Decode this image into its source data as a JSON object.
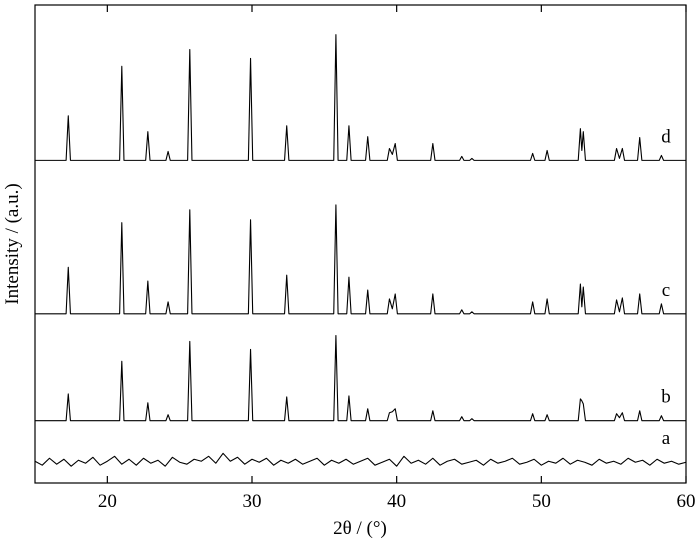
{
  "chart_data": {
    "type": "line",
    "xlabel": "2θ / (°)",
    "ylabel": "Intensity / (a.u.)",
    "xlim": [
      15,
      60
    ],
    "xticks": [
      20,
      30,
      40,
      50,
      60
    ],
    "ylim": [
      0,
      483
    ],
    "x": [
      15,
      17.15,
      17.3,
      17.45,
      20.85,
      21.0,
      21.15,
      22.65,
      22.8,
      22.95,
      24.05,
      24.2,
      24.35,
      25.55,
      25.7,
      25.85,
      29.75,
      29.9,
      30.05,
      32.25,
      32.4,
      32.55,
      35.65,
      35.8,
      35.95,
      36.55,
      36.7,
      36.85,
      37.85,
      38.0,
      38.15,
      39.35,
      39.5,
      39.7,
      39.9,
      40.05,
      42.35,
      42.5,
      42.65,
      44.35,
      44.5,
      44.65,
      45.05,
      45.2,
      45.35,
      49.25,
      49.4,
      49.55,
      50.25,
      50.4,
      50.55,
      52.55,
      52.7,
      52.8,
      52.9,
      53.05,
      55.05,
      55.2,
      55.4,
      55.6,
      55.75,
      56.65,
      56.8,
      56.95,
      58.15,
      58.3,
      58.45,
      60
    ],
    "series": [
      {
        "name": "a",
        "color": "#000000",
        "x": [
          15,
          15.5,
          16,
          16.5,
          17,
          17.5,
          18,
          18.5,
          19,
          19.5,
          20,
          20.5,
          21,
          21.5,
          22,
          22.5,
          23,
          23.5,
          24,
          24.5,
          25,
          25.5,
          26,
          26.5,
          27,
          27.5,
          28,
          28.5,
          29,
          29.5,
          30,
          30.5,
          31,
          31.5,
          32,
          32.5,
          33,
          33.5,
          34,
          34.5,
          35,
          35.5,
          36,
          36.5,
          37,
          37.5,
          38,
          38.5,
          39,
          39.5,
          40,
          40.5,
          41,
          41.5,
          42,
          42.5,
          43,
          43.5,
          44,
          44.5,
          45,
          45.5,
          46,
          46.5,
          47,
          47.5,
          48,
          48.5,
          49,
          49.5,
          50,
          50.5,
          51,
          51.5,
          52,
          52.5,
          53,
          53.5,
          54,
          54.5,
          55,
          55.5,
          56,
          56.5,
          57,
          57.5,
          58,
          58.5,
          59,
          59.5,
          60
        ],
        "values": [
          22,
          18,
          25,
          19,
          24,
          17,
          23,
          20,
          26,
          18,
          22,
          27,
          19,
          24,
          18,
          25,
          20,
          23,
          17,
          26,
          21,
          19,
          24,
          22,
          27,
          20,
          30,
          22,
          26,
          19,
          24,
          21,
          25,
          18,
          23,
          20,
          24,
          19,
          22,
          25,
          18,
          23,
          20,
          24,
          19,
          22,
          25,
          18,
          21,
          24,
          17,
          27,
          20,
          23,
          19,
          25,
          18,
          22,
          24,
          19,
          21,
          23,
          18,
          24,
          20,
          22,
          25,
          19,
          21,
          24,
          18,
          22,
          20,
          25,
          19,
          23,
          21,
          18,
          24,
          20,
          22,
          19,
          25,
          21,
          23,
          18,
          24,
          20,
          22,
          19,
          21
        ]
      },
      {
        "name": "b",
        "color": "#000000",
        "values": [
          63,
          63,
          90,
          63,
          63,
          123,
          63,
          63,
          81,
          63,
          63,
          69,
          63,
          63,
          143,
          63,
          63,
          135,
          63,
          63,
          87,
          63,
          63,
          149,
          63,
          63,
          88,
          63,
          63,
          75,
          63,
          63,
          71,
          72,
          75,
          63,
          63,
          73,
          63,
          63,
          67,
          63,
          63,
          65,
          63,
          63,
          70,
          63,
          63,
          69,
          63,
          63,
          85,
          83,
          80,
          63,
          63,
          70,
          66,
          71,
          63,
          63,
          73,
          63,
          63,
          68,
          63,
          63
        ]
      },
      {
        "name": "c",
        "color": "#000000",
        "values": [
          171,
          171,
          218,
          171,
          171,
          263,
          171,
          171,
          204,
          171,
          171,
          183,
          171,
          171,
          276,
          171,
          171,
          266,
          171,
          171,
          210,
          171,
          171,
          281,
          171,
          171,
          208,
          171,
          171,
          195,
          171,
          171,
          186,
          176,
          191,
          171,
          171,
          191,
          171,
          171,
          175,
          171,
          171,
          173,
          171,
          171,
          183,
          171,
          171,
          186,
          171,
          171,
          201,
          178,
          198,
          171,
          171,
          185,
          173,
          187,
          171,
          171,
          191,
          171,
          171,
          181,
          171,
          171
        ]
      },
      {
        "name": "d",
        "color": "#000000",
        "values": [
          326,
          326,
          371,
          326,
          326,
          421,
          326,
          326,
          355,
          326,
          326,
          335,
          326,
          326,
          438,
          326,
          326,
          429,
          326,
          326,
          361,
          326,
          326,
          453,
          326,
          326,
          361,
          326,
          326,
          350,
          326,
          326,
          338,
          332,
          343,
          326,
          326,
          343,
          326,
          326,
          330,
          326,
          326,
          328,
          326,
          326,
          333,
          326,
          326,
          336,
          326,
          326,
          358,
          336,
          355,
          326,
          326,
          338,
          328,
          338,
          326,
          326,
          349,
          326,
          326,
          331,
          326,
          326
        ]
      }
    ]
  }
}
